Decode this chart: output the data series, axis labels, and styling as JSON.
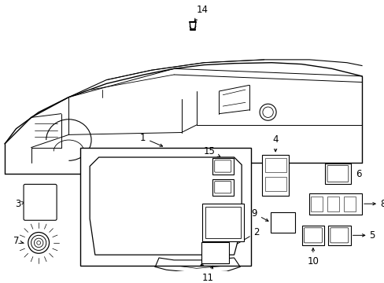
{
  "background_color": "#ffffff",
  "line_color": "#000000",
  "fig_width": 4.89,
  "fig_height": 3.6,
  "dpi": 100,
  "label_fontsize": 8.5,
  "label_fontsize_sm": 7.5
}
